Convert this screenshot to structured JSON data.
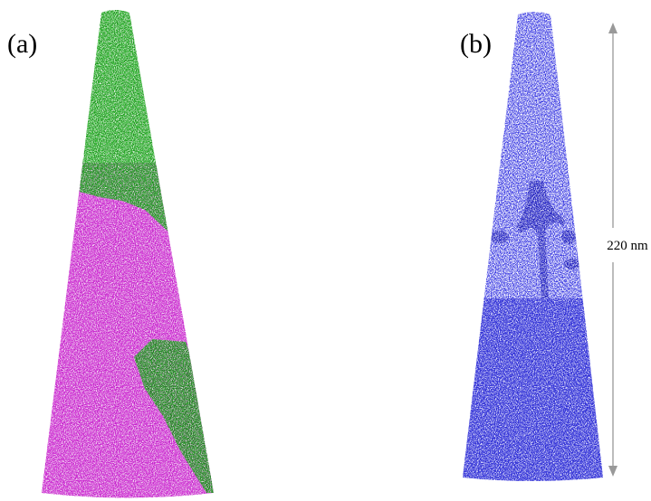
{
  "panels": [
    {
      "label": "(a)"
    },
    {
      "label": "(b)"
    }
  ],
  "scale_bar": {
    "label": "220 nm"
  }
}
